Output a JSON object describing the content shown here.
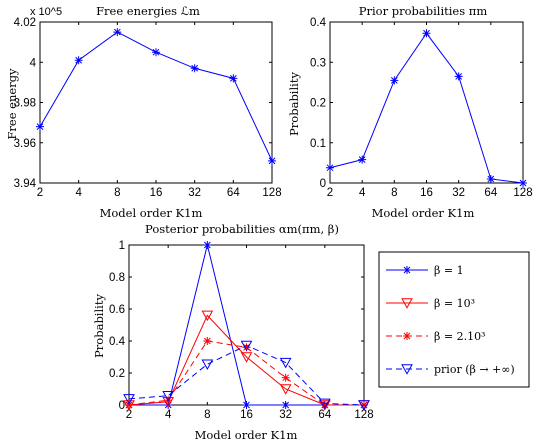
{
  "chart_data": [
    {
      "type": "line",
      "title": "Free energies ℒm",
      "xlabel": "Model order K1m",
      "ylabel": "Free energy",
      "exponent_label": "x 10^5",
      "x": [
        "2",
        "4",
        "8",
        "16",
        "32",
        "64",
        "128"
      ],
      "ylim": [
        3.94,
        4.02
      ],
      "yticks": [
        "3.94",
        "3.96",
        "3.98",
        "4",
        "4.02"
      ],
      "series": [
        {
          "color": "#0000ff",
          "marker": "star",
          "dash": "solid",
          "values": [
            3.968,
            4.001,
            4.015,
            4.005,
            3.997,
            3.992,
            3.951
          ]
        }
      ]
    },
    {
      "type": "line",
      "title": "Prior probabilities πm",
      "xlabel": "Model order K1m",
      "ylabel": "Probability",
      "x": [
        "2",
        "4",
        "8",
        "16",
        "32",
        "64",
        "128"
      ],
      "ylim": [
        0,
        0.4
      ],
      "yticks": [
        "0",
        "0.1",
        "0.2",
        "0.3",
        "0.4"
      ],
      "series": [
        {
          "color": "#0000ff",
          "marker": "star",
          "dash": "solid",
          "values": [
            0.038,
            0.058,
            0.255,
            0.372,
            0.265,
            0.01,
            0.0
          ]
        }
      ]
    },
    {
      "type": "line",
      "title": "Posterior probabilities αm(πm, β)",
      "xlabel": "Model order K1m",
      "ylabel": "Probability",
      "x": [
        "2",
        "4",
        "8",
        "16",
        "32",
        "64",
        "128"
      ],
      "ylim": [
        0,
        1
      ],
      "yticks": [
        "0",
        "0.2",
        "0.4",
        "0.6",
        "0.8",
        "1"
      ],
      "legend_position": "right",
      "series": [
        {
          "name": "β = 1",
          "color": "#0000ff",
          "marker": "star",
          "dash": "solid",
          "values": [
            0.0,
            0.0,
            1.0,
            0.0,
            0.0,
            0.0,
            0.0
          ]
        },
        {
          "name": "β = 10³",
          "color": "#ff0000",
          "marker": "triangle-down",
          "dash": "solid",
          "values": [
            0.0,
            0.02,
            0.56,
            0.3,
            0.1,
            0.0,
            0.0
          ]
        },
        {
          "name": "β = 2.10³",
          "color": "#ff0000",
          "marker": "star",
          "dash": "dashed",
          "values": [
            0.0,
            0.03,
            0.4,
            0.36,
            0.17,
            0.0,
            0.0
          ]
        },
        {
          "name": "prior (β → +∞)",
          "color": "#0000ff",
          "marker": "triangle-down",
          "dash": "dashed",
          "values": [
            0.038,
            0.058,
            0.255,
            0.372,
            0.265,
            0.01,
            0.0
          ]
        }
      ]
    }
  ]
}
